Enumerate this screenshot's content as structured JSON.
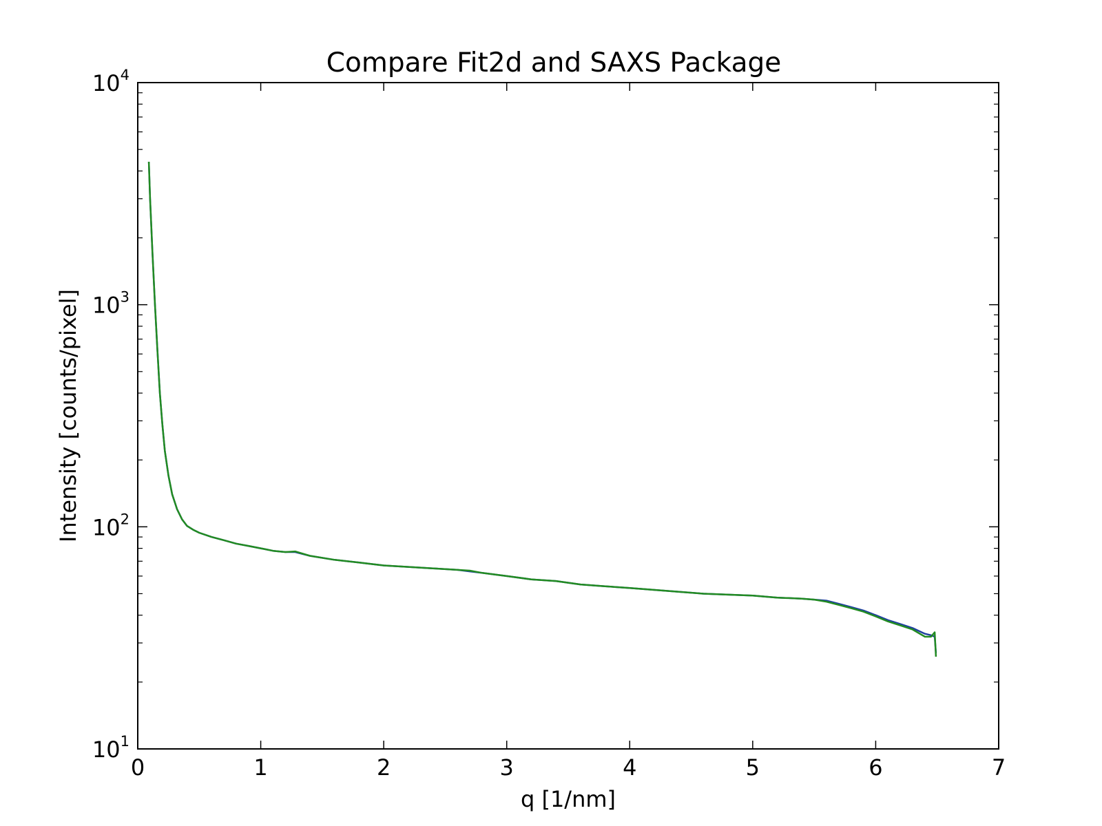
{
  "chart_data": {
    "type": "line",
    "title": "Compare Fit2d and SAXS Package",
    "xlabel": "q [1/nm]",
    "ylabel": "Intensity [counts/pixel]",
    "xlim": [
      0,
      7
    ],
    "ylim": [
      10,
      10000
    ],
    "yscale": "log",
    "grid": false,
    "x_ticks": [
      "0",
      "1",
      "2",
      "3",
      "4",
      "5",
      "6",
      "7"
    ],
    "y_ticks": [
      {
        "base": "10",
        "exp": "1"
      },
      {
        "base": "10",
        "exp": "2"
      },
      {
        "base": "10",
        "exp": "3"
      },
      {
        "base": "10",
        "exp": "4"
      }
    ],
    "series": [
      {
        "color": "#1f3fa0",
        "x": [
          0.09,
          0.1,
          0.12,
          0.14,
          0.16,
          0.18,
          0.2,
          0.22,
          0.25,
          0.28,
          0.32,
          0.36,
          0.4,
          0.45,
          0.5,
          0.6,
          0.7,
          0.8,
          0.9,
          1.0,
          1.1,
          1.2,
          1.28,
          1.4,
          1.6,
          1.8,
          2.0,
          2.2,
          2.4,
          2.6,
          2.7,
          2.8,
          3.0,
          3.2,
          3.4,
          3.6,
          3.8,
          4.0,
          4.2,
          4.4,
          4.6,
          4.8,
          5.0,
          5.2,
          5.4,
          5.5,
          5.6,
          5.7,
          5.8,
          5.9,
          6.0,
          6.1,
          6.2,
          6.3,
          6.4,
          6.45,
          6.48,
          6.49
        ],
        "y": [
          4400,
          3000,
          1700,
          1000,
          620,
          400,
          290,
          220,
          170,
          140,
          120,
          108,
          101,
          97,
          94,
          90,
          87,
          84,
          82,
          80,
          78,
          77,
          77,
          74,
          71,
          69,
          67,
          66,
          65,
          64,
          63,
          62,
          60,
          58,
          57,
          55,
          54,
          53,
          52,
          51,
          50,
          49.5,
          49,
          48,
          47.5,
          47,
          46.5,
          45,
          43.5,
          42,
          40,
          38,
          36.5,
          35,
          33,
          32.5,
          32,
          27
        ]
      },
      {
        "color": "#228b22",
        "x": [
          0.09,
          0.1,
          0.12,
          0.14,
          0.16,
          0.18,
          0.2,
          0.22,
          0.25,
          0.28,
          0.32,
          0.36,
          0.4,
          0.45,
          0.5,
          0.6,
          0.7,
          0.8,
          0.9,
          1.0,
          1.1,
          1.2,
          1.28,
          1.4,
          1.6,
          1.8,
          2.0,
          2.2,
          2.4,
          2.6,
          2.7,
          2.8,
          3.0,
          3.2,
          3.4,
          3.6,
          3.8,
          4.0,
          4.2,
          4.4,
          4.6,
          4.8,
          5.0,
          5.2,
          5.4,
          5.5,
          5.6,
          5.7,
          5.8,
          5.9,
          6.0,
          6.1,
          6.2,
          6.3,
          6.4,
          6.45,
          6.48,
          6.49
        ],
        "y": [
          4400,
          3000,
          1700,
          1000,
          620,
          400,
          290,
          220,
          170,
          140,
          120,
          108,
          101,
          97,
          94,
          90,
          87,
          84,
          82,
          80,
          78,
          77,
          77.5,
          74,
          71,
          69,
          67,
          66,
          65,
          64,
          63.5,
          62,
          60,
          58,
          57,
          55,
          54,
          53,
          52,
          51,
          50,
          49.5,
          49,
          48,
          47.5,
          47,
          46,
          44.5,
          43,
          41.5,
          39.5,
          37.5,
          36,
          34.5,
          32,
          32,
          33.5,
          26
        ]
      }
    ]
  }
}
